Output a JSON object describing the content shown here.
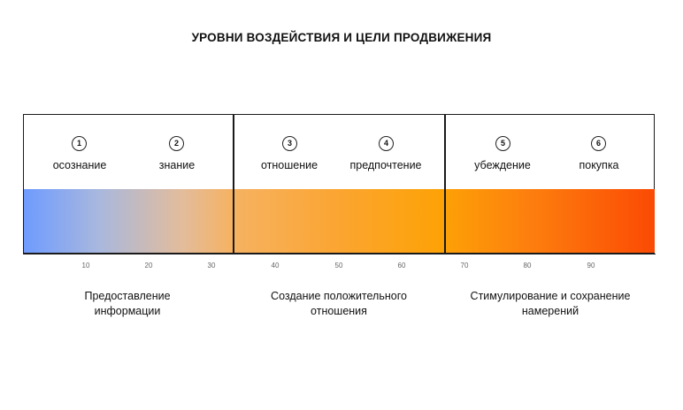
{
  "title": "УРОВНИ ВОЗДЕЙСТВИЯ И ЦЕЛИ ПРОДВИЖЕНИЯ",
  "stages": [
    {
      "number": "1",
      "label": "осознание"
    },
    {
      "number": "2",
      "label": "знание"
    },
    {
      "number": "3",
      "label": "отношение"
    },
    {
      "number": "4",
      "label": "предпочтение"
    },
    {
      "number": "5",
      "label": "убеждение"
    },
    {
      "number": "6",
      "label": "покупка"
    }
  ],
  "scale": {
    "ticks": [
      "10",
      "20",
      "30",
      "40",
      "50",
      "60",
      "70",
      "80",
      "90"
    ]
  },
  "groups": [
    {
      "line1": "Предоставление",
      "line2": "информации"
    },
    {
      "line1": "Создание положительного",
      "line2": "отношения"
    },
    {
      "line1": "Стимулирование и сохранение",
      "line2": "намерений"
    }
  ],
  "colors": {
    "gradient_start": "#6f9bff",
    "gradient_mid": "#fda206",
    "gradient_end": "#fb4a04"
  }
}
